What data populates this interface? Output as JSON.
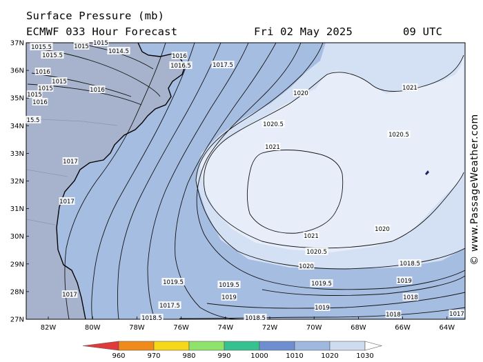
{
  "title": "Surface Pressure (mb)",
  "model": "ECMWF 033 Hour Forecast",
  "valid_date": "Fri 02 May 2025",
  "valid_time": "09 UTC",
  "watermark": "© www.PassageWeather.com",
  "lat_labels": [
    "37N",
    "36N",
    "35N",
    "34N",
    "33N",
    "32N",
    "31N",
    "30N",
    "29N",
    "28N",
    "27N"
  ],
  "lon_labels": [
    "82W",
    "80W",
    "78W",
    "76W",
    "74W",
    "72W",
    "70W",
    "68W",
    "66W",
    "64W"
  ],
  "scale": {
    "ticks": [
      "960",
      "970",
      "980",
      "990",
      "1000",
      "1010",
      "1020",
      "1030"
    ],
    "colors": [
      "#e03a3a",
      "#f08a1a",
      "#f6d818",
      "#8fe36a",
      "#36c290",
      "#6d8fd0",
      "#9fb8e0",
      "#cfdcf0",
      "#ffffff"
    ]
  },
  "colors": {
    "land": "#a7b3cc",
    "band_1015": "#a6bde2",
    "band_1020": "#d4e0f4",
    "band_1021": "#e7eef9",
    "contour": "#111111",
    "coast": "#000000"
  },
  "isobar_labels": [
    "1015.5",
    "1015.5",
    "1015",
    "1015",
    "1014.5",
    "1016",
    "1016.5",
    "1017.5",
    "1016",
    "1015",
    "1016",
    "1015",
    "1015",
    "1016",
    "15.5",
    "1017",
    "1017",
    "1017",
    "1020",
    "1021",
    "1020.5",
    "1021",
    "1020.5",
    "1021",
    "1020.5",
    "1020",
    "1020",
    "1018.5",
    "1019.5",
    "1019.5",
    "1019.5",
    "1019",
    "1019",
    "1019",
    "1018",
    "1017.5",
    "1018.5",
    "1018.5",
    "1018",
    "1017"
  ]
}
